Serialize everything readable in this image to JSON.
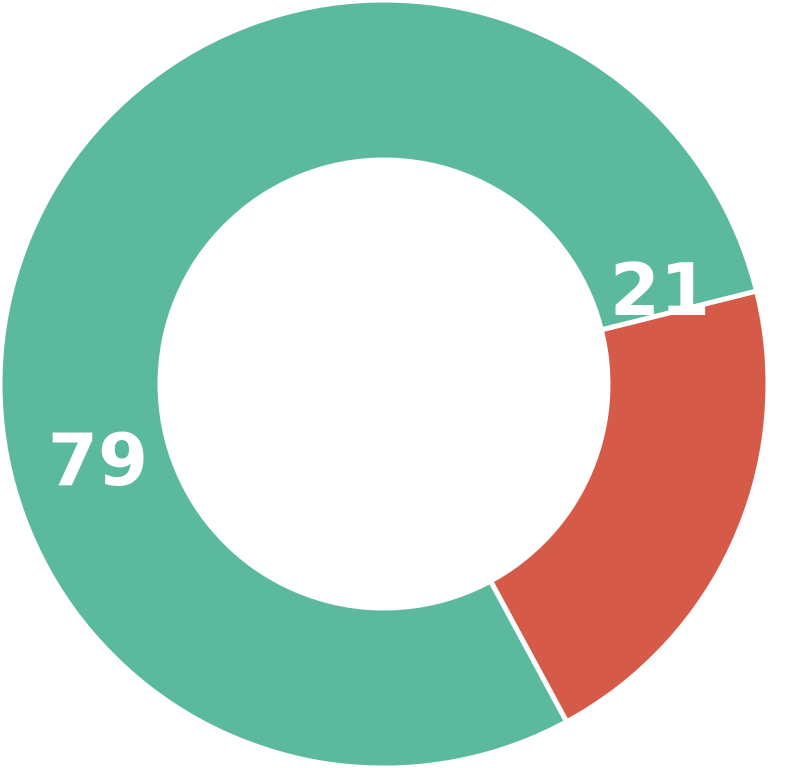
{
  "chart_data": {
    "type": "pie",
    "variant": "donut",
    "categories": [
      "",
      ""
    ],
    "values": [
      79,
      21
    ],
    "data_labels": [
      "79",
      "21"
    ],
    "colors": [
      "#5BBA9D",
      "#D65A48"
    ],
    "title": "",
    "legend": "none"
  }
}
